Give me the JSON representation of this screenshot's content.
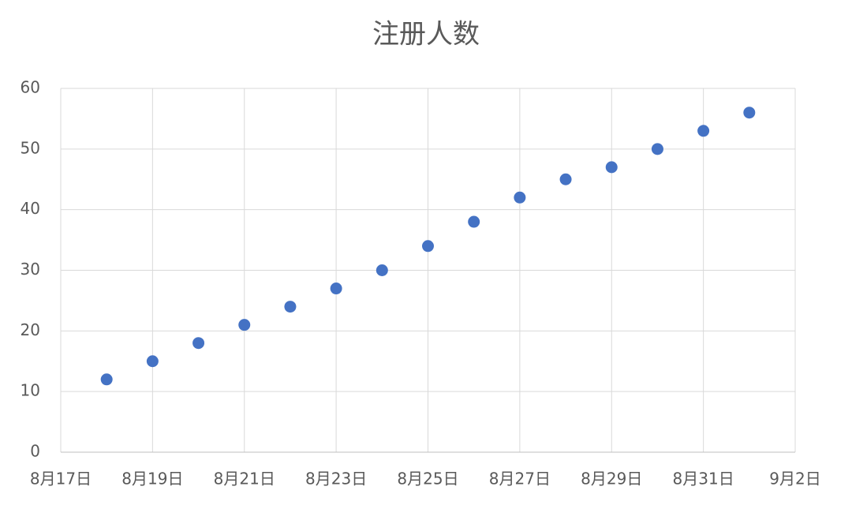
{
  "chart_data": {
    "type": "scatter",
    "title": "注册人数",
    "x": [
      "08-18",
      "08-19",
      "08-20",
      "08-21",
      "08-22",
      "08-23",
      "08-24",
      "08-25",
      "08-26",
      "08-27",
      "08-28",
      "08-29",
      "08-30",
      "08-31",
      "09-01"
    ],
    "series": [
      {
        "name": "注册人数",
        "color": "#4472c4",
        "values": [
          12,
          15,
          18,
          21,
          24,
          27,
          30,
          34,
          38,
          42,
          45,
          47,
          50,
          53,
          56
        ]
      }
    ],
    "xlim": [
      "08-17",
      "09-02"
    ],
    "xticks": [
      {
        "value": "08-17",
        "label": "8月17日"
      },
      {
        "value": "08-19",
        "label": "8月19日"
      },
      {
        "value": "08-21",
        "label": "8月21日"
      },
      {
        "value": "08-23",
        "label": "8月23日"
      },
      {
        "value": "08-25",
        "label": "8月25日"
      },
      {
        "value": "08-27",
        "label": "8月27日"
      },
      {
        "value": "08-29",
        "label": "8月29日"
      },
      {
        "value": "08-31",
        "label": "8月31日"
      },
      {
        "value": "09-02",
        "label": "9月2日"
      }
    ],
    "ylim": [
      0,
      60
    ],
    "yticks": [
      0,
      10,
      20,
      30,
      40,
      50,
      60
    ],
    "grid": true
  }
}
